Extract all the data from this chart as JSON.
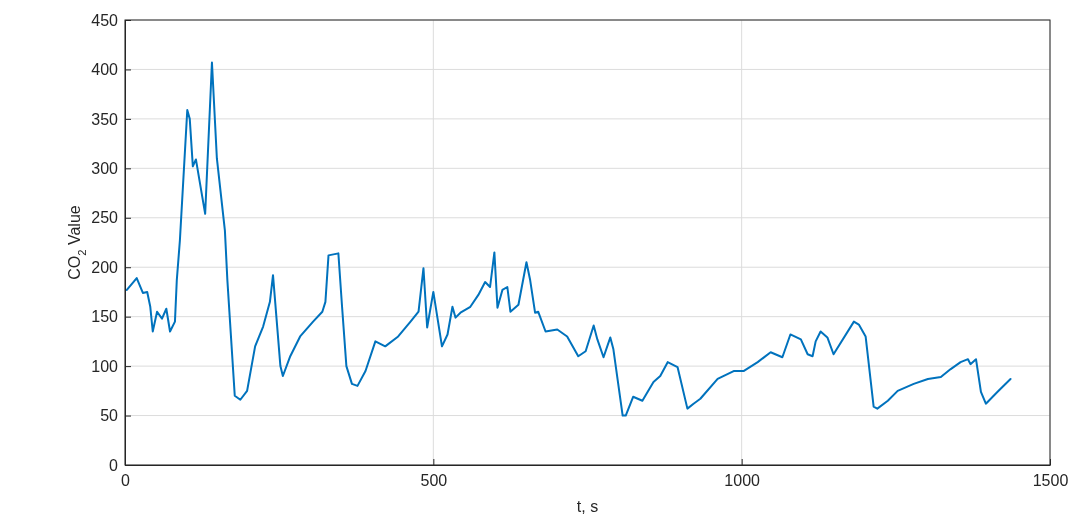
{
  "chart_data": {
    "type": "line",
    "xlabel": "t, s",
    "ylabel": "CO$_{2}$ Value",
    "xlim": [
      0,
      1500
    ],
    "xticks": [
      0,
      500,
      1000,
      1500
    ],
    "ylim": [
      0,
      450
    ],
    "yticks": [
      0,
      50,
      100,
      150,
      200,
      250,
      300,
      350,
      400,
      450
    ],
    "grid": true,
    "marker": "none",
    "line_style": "solid",
    "series": [
      {
        "color": "#0072bd",
        "x": [
          3,
          19,
          29,
          36,
          41,
          45,
          52,
          60,
          67,
          73,
          81,
          84,
          89,
          101,
          105,
          110,
          115,
          130,
          141,
          149,
          162,
          166,
          178,
          187,
          198,
          211,
          224,
          235,
          240,
          252,
          256,
          268,
          284,
          305,
          320,
          325,
          330,
          346,
          352,
          359,
          368,
          377,
          390,
          406,
          422,
          443,
          463,
          476,
          484,
          490,
          500,
          514,
          523,
          531,
          536,
          544,
          560,
          573,
          584,
          592,
          599,
          604,
          612,
          620,
          625,
          638,
          651,
          657,
          665,
          670,
          682,
          701,
          717,
          735,
          747,
          760,
          766,
          776,
          787,
          792,
          807,
          812,
          824,
          839,
          857,
          868,
          880,
          896,
          912,
          922,
          933,
          961,
          987,
          1003,
          1026,
          1047,
          1066,
          1079,
          1096,
          1107,
          1115,
          1120,
          1128,
          1139,
          1149,
          1182,
          1190,
          1201,
          1214,
          1220,
          1237,
          1253,
          1279,
          1302,
          1323,
          1339,
          1355,
          1367,
          1371,
          1380,
          1388,
          1396,
          1415,
          1436
        ],
        "values": [
          177,
          189,
          174,
          175,
          160,
          135,
          155,
          148,
          158,
          135,
          145,
          187,
          227,
          359,
          350,
          302,
          309,
          254,
          407,
          310,
          237,
          187,
          70,
          66,
          75,
          120,
          140,
          165,
          192,
          100,
          90,
          110,
          130,
          145,
          155,
          165,
          212,
          214,
          160,
          100,
          82,
          80,
          95,
          125,
          120,
          130,
          145,
          155,
          199,
          139,
          175,
          120,
          132,
          160,
          149,
          154,
          160,
          172,
          185,
          180,
          215,
          159,
          177,
          180,
          155,
          162,
          205,
          187,
          154,
          155,
          135,
          137,
          130,
          110,
          115,
          141,
          127,
          109,
          129,
          117,
          50,
          50,
          69,
          65,
          84,
          90,
          104,
          99,
          57,
          62,
          67,
          87,
          95,
          95,
          104,
          114,
          109,
          132,
          127,
          112,
          110,
          125,
          135,
          129,
          112,
          145,
          142,
          130,
          59,
          57,
          65,
          75,
          82,
          87,
          89,
          97,
          104,
          107,
          102,
          107,
          74,
          62,
          74,
          87
        ]
      }
    ]
  }
}
